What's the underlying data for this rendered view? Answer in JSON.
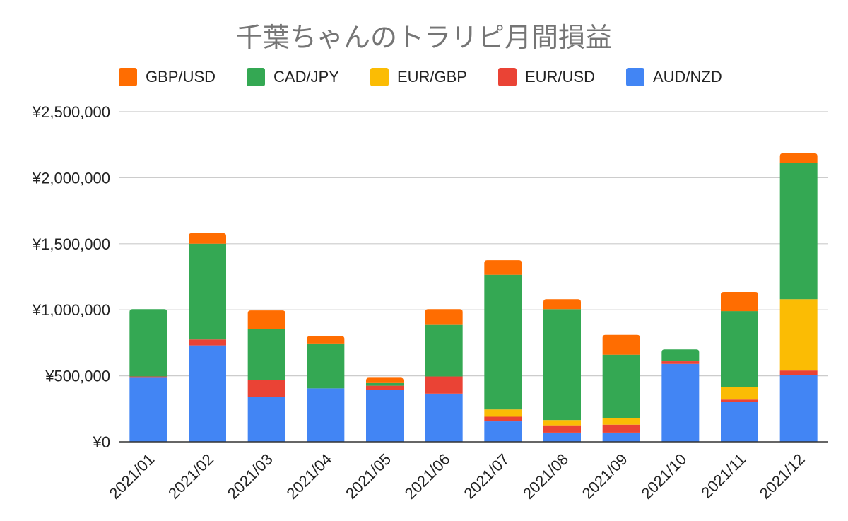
{
  "chart_data": {
    "type": "bar",
    "stacked": true,
    "title": "千葉ちゃんのトラリピ月間損益",
    "xlabel": "",
    "ylabel": "",
    "ylim": [
      0,
      2500000
    ],
    "yticks": [
      0,
      500000,
      1000000,
      1500000,
      2000000,
      2500000
    ],
    "ytick_labels": [
      "¥0",
      "¥500,000",
      "¥1,000,000",
      "¥1,500,000",
      "¥2,000,000",
      "¥2,500,000"
    ],
    "grid": true,
    "legend_position": "top",
    "categories": [
      "2021/01",
      "2021/02",
      "2021/03",
      "2021/04",
      "2021/05",
      "2021/06",
      "2021/07",
      "2021/08",
      "2021/09",
      "2021/10",
      "2021/11",
      "2021/12"
    ],
    "legend_order": [
      "GBP/USD",
      "CAD/JPY",
      "EUR/GBP",
      "EUR/USD",
      "AUD/NZD"
    ],
    "series": [
      {
        "name": "AUD/NZD",
        "color": "#4285f4",
        "values": [
          485000,
          730000,
          340000,
          405000,
          395000,
          365000,
          155000,
          70000,
          70000,
          590000,
          300000,
          505000
        ]
      },
      {
        "name": "EUR/USD",
        "color": "#ea4335",
        "values": [
          10000,
          45000,
          130000,
          0,
          30000,
          130000,
          35000,
          55000,
          60000,
          20000,
          20000,
          35000
        ]
      },
      {
        "name": "EUR/GBP",
        "color": "#fbbc04",
        "values": [
          0,
          0,
          0,
          0,
          0,
          0,
          55000,
          40000,
          50000,
          0,
          95000,
          540000
        ]
      },
      {
        "name": "CAD/JPY",
        "color": "#34a853",
        "values": [
          510000,
          725000,
          385000,
          340000,
          20000,
          390000,
          1020000,
          840000,
          480000,
          90000,
          575000,
          1030000
        ]
      },
      {
        "name": "GBP/USD",
        "color": "#ff6d01",
        "values": [
          0,
          80000,
          140000,
          55000,
          40000,
          120000,
          110000,
          75000,
          150000,
          0,
          145000,
          75000
        ]
      }
    ]
  }
}
